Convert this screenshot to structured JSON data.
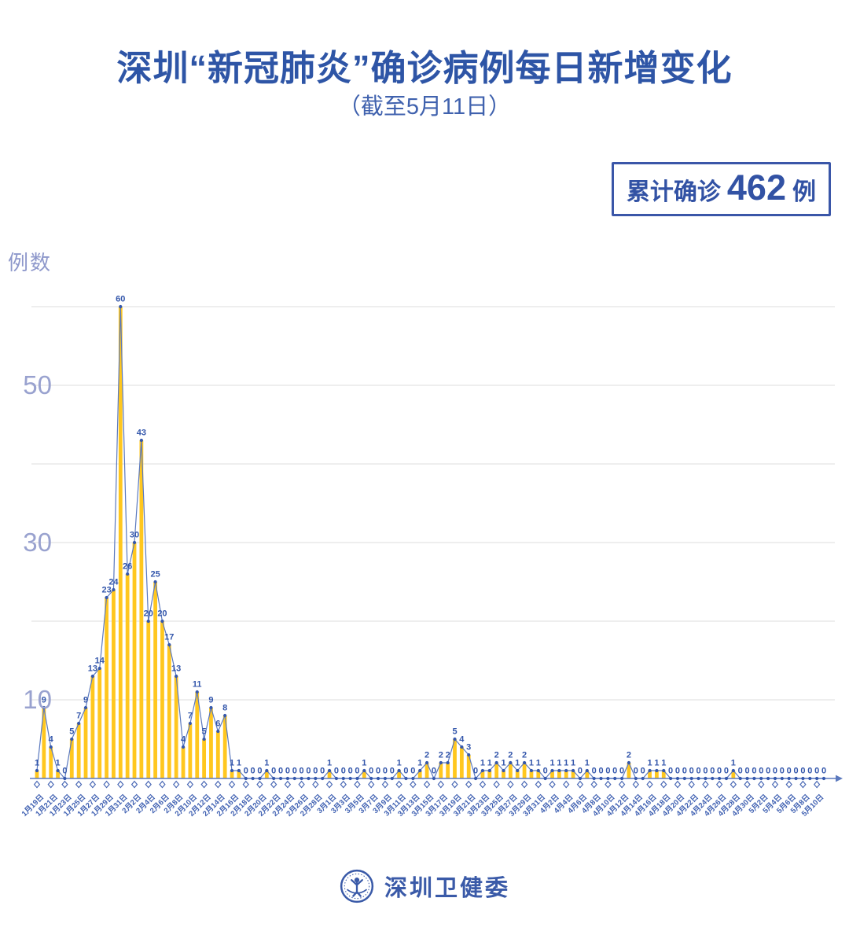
{
  "badge": {
    "prefix": "累计确诊",
    "value": "462",
    "suffix": "例"
  },
  "footer": {
    "org_name": "深圳卫健委",
    "logo_icon": "shenzhen-health-commission-emblem"
  },
  "chart_data": {
    "type": "bar",
    "overlay": "line",
    "title": "深圳“新冠肺炎”确诊病例每日新增变化",
    "subtitle": "（截至5月11日）",
    "y_axis_title": "例数",
    "date_range": {
      "start": "1月19日",
      "end": "5月11日"
    },
    "x_label_interval_days": 2,
    "x_labels": [
      "1月19日",
      "1月21日",
      "1月23日",
      "1月25日",
      "1月27日",
      "1月29日",
      "1月31日",
      "2月2日",
      "2月4日",
      "2月6日",
      "2月8日",
      "2月10日",
      "2月12日",
      "2月14日",
      "2月16日",
      "2月18日",
      "2月20日",
      "2月22日",
      "2月24日",
      "2月26日",
      "2月28日",
      "3月1日",
      "3月3日",
      "3月5日",
      "3月7日",
      "3月9日",
      "3月11日",
      "3月13日",
      "3月15日",
      "3月17日",
      "3月19日",
      "3月21日",
      "3月23日",
      "3月25日",
      "3月27日",
      "3月29日",
      "3月31日",
      "4月2日",
      "4月4日",
      "4月6日",
      "4月8日",
      "4月10日",
      "4月12日",
      "4月14日",
      "4月16日",
      "4月18日",
      "4月20日",
      "4月22日",
      "4月24日",
      "4月26日",
      "4月28日",
      "4月30日",
      "5月2日",
      "5月4日",
      "5月6日",
      "5月8日",
      "5月10日"
    ],
    "values": [
      1,
      9,
      4,
      1,
      0,
      5,
      7,
      9,
      13,
      14,
      23,
      24,
      60,
      26,
      30,
      43,
      20,
      25,
      20,
      17,
      13,
      4,
      7,
      11,
      5,
      9,
      6,
      8,
      1,
      1,
      0,
      0,
      0,
      1,
      0,
      0,
      0,
      0,
      0,
      0,
      0,
      0,
      1,
      0,
      0,
      0,
      0,
      1,
      0,
      0,
      0,
      0,
      1,
      0,
      0,
      1,
      2,
      0,
      2,
      2,
      5,
      4,
      3,
      0,
      1,
      1,
      2,
      1,
      2,
      1,
      2,
      1,
      1,
      0,
      1,
      1,
      1,
      1,
      0,
      1,
      0,
      0,
      0,
      0,
      0,
      2,
      0,
      0,
      1,
      1,
      1,
      0,
      0,
      0,
      0,
      0,
      0,
      0,
      0,
      0,
      1,
      0,
      0,
      0,
      0,
      0,
      0,
      0,
      0,
      0,
      0,
      0,
      0,
      0
    ],
    "values_total": 462,
    "y_ticks": [
      10,
      30,
      50
    ],
    "grid_values": [
      10,
      20,
      30,
      40,
      50,
      60
    ],
    "ylim": [
      0,
      62
    ],
    "legend": "none",
    "colors": {
      "bar": "#ffc71f",
      "line": "#5b79be",
      "dot": "#3558ad",
      "point_label": "#3356ab",
      "axis": "#5b79be",
      "tick_marker": "#4a69b5",
      "grid": "#dedede",
      "x_label": "#4061b2",
      "y_label": "#99a2cf",
      "axis_title": "#8e98cb",
      "accent": "#2e55a6"
    }
  }
}
